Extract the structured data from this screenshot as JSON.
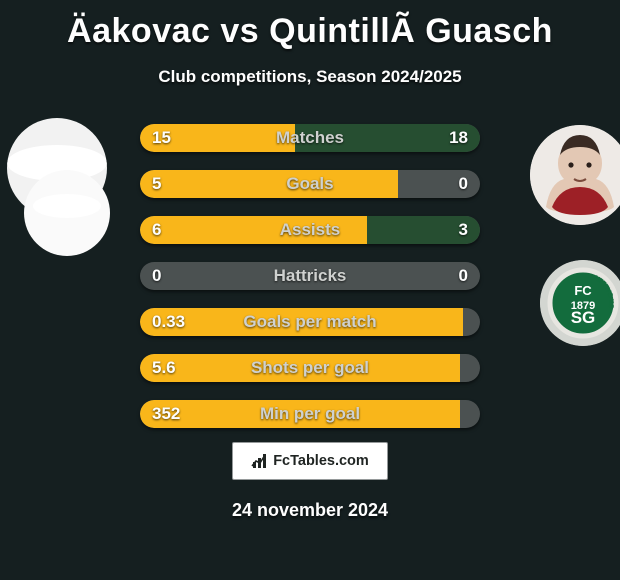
{
  "title": "Äakovac vs QuintillÃ  Guasch",
  "subtitle": "Club competitions, Season 2024/2025",
  "date": "24 november 2024",
  "logo_text": "FcTables.com",
  "colors": {
    "bg": "#151f20",
    "bar_bg": "#4b5151",
    "left_fill": "#f9b61a",
    "right_fill": "#264e31",
    "badge_green": "#136c3d",
    "badge_ring": "#e7e6e1",
    "title_text": "#fefefe",
    "label_text": "#cfd1cf",
    "value_text": "#fdfefe",
    "logo_bg": "#ffffff",
    "logo_border": "#95999a"
  },
  "bars": [
    {
      "label": "Matches",
      "left": "15",
      "right": "18",
      "left_pct": 45.5,
      "right_pct": 54.5
    },
    {
      "label": "Goals",
      "left": "5",
      "right": "0",
      "left_pct": 76.0,
      "right_pct": 0.0
    },
    {
      "label": "Assists",
      "left": "6",
      "right": "3",
      "left_pct": 66.7,
      "right_pct": 33.3
    },
    {
      "label": "Hattricks",
      "left": "0",
      "right": "0",
      "left_pct": 0.0,
      "right_pct": 0.0
    },
    {
      "label": "Goals per match",
      "left": "0.33",
      "right": "",
      "left_pct": 95.0,
      "right_pct": 0.0
    },
    {
      "label": "Shots per goal",
      "left": "5.6",
      "right": "",
      "left_pct": 94.0,
      "right_pct": 0.0
    },
    {
      "label": "Min per goal",
      "left": "352",
      "right": "",
      "left_pct": 94.0,
      "right_pct": 0.0
    }
  ],
  "stat_type": "horizontal-split-bar"
}
